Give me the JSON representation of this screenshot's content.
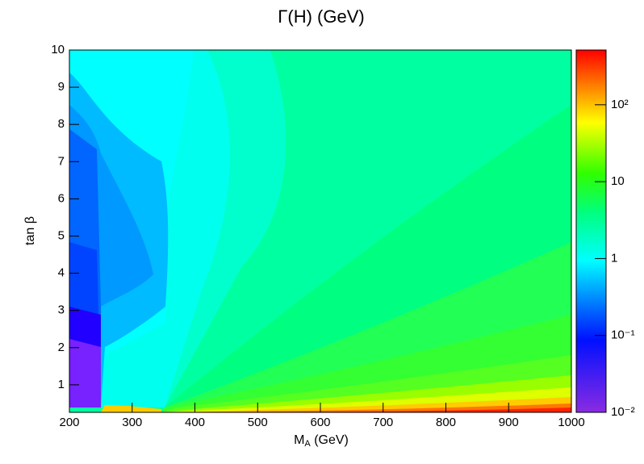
{
  "chart_data": {
    "type": "contour",
    "title": "Γ(H) (GeV)",
    "x_label": [
      "M",
      "A",
      " (GeV)"
    ],
    "y_label": "tan β",
    "xlim": [
      200,
      1000
    ],
    "xticks": [
      200,
      300,
      400,
      500,
      600,
      700,
      800,
      900,
      1000
    ],
    "ylim": [
      0.26,
      10
    ],
    "yticks": [
      1,
      2,
      3,
      4,
      5,
      6,
      7,
      8,
      9,
      10
    ],
    "zlim": [
      0.01,
      515
    ],
    "zscale": "log",
    "zticks": [
      {
        "value": 0.01,
        "label": "10⁻²"
      },
      {
        "value": 0.1,
        "label": "10⁻¹"
      },
      1,
      10,
      {
        "value": 100,
        "label": "10²"
      }
    ]
  }
}
